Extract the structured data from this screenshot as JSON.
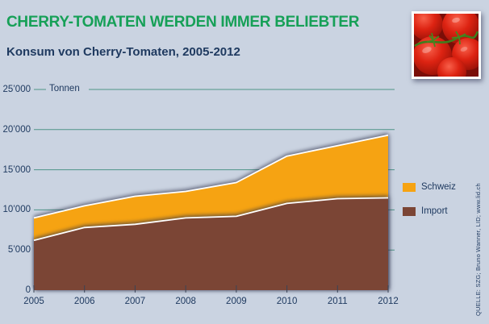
{
  "header": {
    "title": "CHERRY-TOMATEN WERDEN IMMER BELIEBTER",
    "subtitle": "Konsum von Cherry-Tomaten, 2005-2012"
  },
  "colors": {
    "background": "#cad3e1",
    "title_green": "#16a057",
    "text_navy": "#1f3a60",
    "gridline_teal": "#4e9488",
    "schweiz_orange": "#f6a312",
    "import_brown": "#7b4535",
    "edge_white": "#ffffff"
  },
  "legend": {
    "items": [
      {
        "label": "Schweiz",
        "color": "#f6a312"
      },
      {
        "label": "Import",
        "color": "#7b4535"
      }
    ]
  },
  "source_credit": "QUELLE: SZG; Bruno Wanner, LID; www.lid.ch",
  "icons": {
    "tomatoes_photo": "cherry-tomatoes-photo"
  },
  "chart_data": {
    "type": "area",
    "stacked": true,
    "title": "CHERRY-TOMATEN WERDEN IMMER BELIEBTER",
    "subtitle": "Konsum von Cherry-Tomaten, 2005-2012",
    "x": [
      2005,
      2006,
      2007,
      2008,
      2009,
      2010,
      2011,
      2012
    ],
    "series": [
      {
        "name": "Import",
        "color": "#7b4535",
        "values": [
          6200,
          7800,
          8200,
          9000,
          9200,
          10800,
          11400,
          11500
        ]
      },
      {
        "name": "Schweiz",
        "color": "#f6a312",
        "values": [
          2800,
          2700,
          3500,
          3300,
          4200,
          5900,
          6600,
          7800
        ]
      }
    ],
    "totals": [
      9000,
      10500,
      11700,
      12300,
      13400,
      16700,
      18000,
      19300
    ],
    "ylabel": "Tonnen",
    "xlabel": "",
    "ylim": [
      0,
      25000
    ],
    "yticks": [
      0,
      5000,
      10000,
      15000,
      20000,
      25000
    ],
    "ytick_labels": [
      "0",
      "5’000",
      "10’000",
      "15’000",
      "20’000",
      "25’000"
    ],
    "grid": true,
    "legend_position": "right"
  }
}
